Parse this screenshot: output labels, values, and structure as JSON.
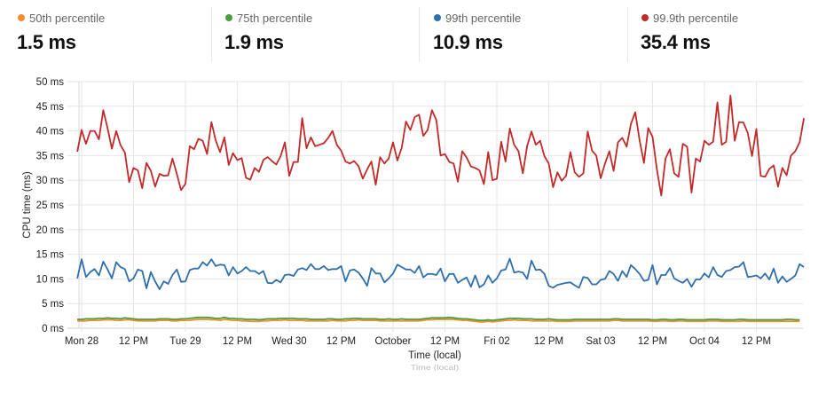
{
  "summary": [
    {
      "label": "50th percentile",
      "value": "1.5 ms",
      "color": "#f28e2b"
    },
    {
      "label": "75th percentile",
      "value": "1.9 ms",
      "color": "#4a9e3f"
    },
    {
      "label": "99th percentile",
      "value": "10.9 ms",
      "color": "#2f6fae"
    },
    {
      "label": "99.9th percentile",
      "value": "35.4 ms",
      "color": "#c22a2a"
    }
  ],
  "chart_data": {
    "type": "line",
    "xlabel": "Time (local)",
    "xlabel_reflection": "Time (local)",
    "ylabel": "CPU time (ms)",
    "ylim": [
      0,
      50
    ],
    "y_ticks": [
      "0 ms",
      "5 ms",
      "10 ms",
      "15 ms",
      "20 ms",
      "25 ms",
      "30 ms",
      "35 ms",
      "40 ms",
      "45 ms",
      "50 ms"
    ],
    "x_ticks": [
      "Mon 28",
      "12 PM",
      "Tue 29",
      "12 PM",
      "Wed 30",
      "12 PM",
      "October",
      "12 PM",
      "Fri 02",
      "12 PM",
      "Sat 03",
      "12 PM",
      "Oct 04",
      "12 PM"
    ],
    "x_tick_interval": "12 hours",
    "x_range": [
      "Sep 27 23:00",
      "Oct 04 22:00"
    ],
    "data_interval": "1 hour",
    "grid": true,
    "series": [
      {
        "name": "50th percentile",
        "color": "#f28e2b",
        "values": [
          1.5,
          1.5,
          1.5,
          1.6,
          1.6,
          1.6,
          1.7,
          1.7,
          1.7,
          1.6,
          1.6,
          1.7,
          1.7,
          1.6,
          1.5,
          1.5,
          1.5,
          1.5,
          1.5,
          1.6,
          1.6,
          1.6,
          1.5,
          1.5,
          1.6,
          1.6,
          1.6,
          1.7,
          1.8,
          1.8,
          1.8,
          1.7,
          1.7,
          1.6,
          1.8,
          1.7,
          1.6,
          1.6,
          1.5,
          1.5,
          1.4,
          1.4,
          1.4,
          1.5,
          1.5,
          1.6,
          1.6,
          1.6,
          1.7,
          1.6,
          1.6,
          1.6,
          1.6,
          1.5,
          1.5,
          1.5,
          1.5,
          1.5,
          1.5,
          1.6,
          1.5,
          1.5,
          1.5,
          1.6,
          1.6,
          1.7,
          1.6,
          1.6,
          1.6,
          1.6,
          1.5,
          1.5,
          1.5,
          1.5,
          1.5,
          1.5,
          1.5,
          1.5,
          1.5,
          1.5,
          1.6,
          1.7,
          1.7,
          1.8,
          1.8,
          1.8,
          1.8,
          1.8,
          1.7,
          1.6,
          1.6,
          1.5,
          1.4,
          1.3,
          1.3,
          1.4,
          1.3,
          1.4,
          1.5,
          1.6,
          1.6,
          1.7,
          1.6,
          1.6,
          1.6,
          1.5,
          1.5,
          1.5,
          1.5,
          1.5,
          1.5,
          1.4,
          1.4,
          1.4,
          1.4,
          1.5,
          1.5,
          1.5,
          1.5,
          1.5,
          1.5,
          1.5,
          1.5,
          1.5,
          1.6,
          1.6,
          1.5,
          1.5,
          1.5,
          1.5,
          1.5,
          1.5,
          1.5,
          1.4,
          1.4,
          1.5,
          1.5,
          1.4,
          1.4,
          1.5,
          1.5,
          1.4,
          1.4,
          1.4,
          1.4,
          1.4,
          1.5,
          1.5,
          1.5,
          1.4,
          1.4,
          1.4,
          1.4,
          1.4,
          1.5,
          1.4,
          1.4,
          1.4,
          1.4,
          1.4,
          1.4,
          1.4,
          1.4,
          1.4,
          1.4,
          1.4,
          1.4,
          1.4
        ]
      },
      {
        "name": "75th percentile",
        "color": "#4a9e3f",
        "values": [
          1.8,
          1.8,
          1.9,
          1.9,
          1.9,
          2.0,
          2.0,
          2.1,
          2.0,
          2.0,
          1.9,
          2.1,
          2.0,
          1.9,
          1.8,
          1.8,
          1.8,
          1.8,
          1.8,
          1.9,
          1.9,
          1.9,
          1.8,
          1.8,
          1.9,
          1.9,
          2.0,
          2.1,
          2.2,
          2.2,
          2.2,
          2.1,
          2.0,
          2.0,
          2.2,
          2.0,
          2.0,
          1.9,
          1.9,
          1.8,
          1.8,
          1.8,
          1.7,
          1.8,
          1.9,
          1.9,
          1.9,
          2.0,
          2.0,
          2.0,
          2.0,
          1.9,
          1.9,
          1.9,
          1.8,
          1.8,
          1.8,
          1.8,
          1.9,
          1.9,
          1.8,
          1.8,
          1.9,
          1.9,
          2.0,
          2.0,
          1.9,
          1.9,
          1.9,
          1.9,
          1.8,
          1.8,
          1.9,
          1.8,
          1.8,
          1.9,
          1.8,
          1.8,
          1.8,
          1.8,
          1.9,
          2.0,
          2.1,
          2.1,
          2.1,
          2.1,
          2.2,
          2.1,
          2.0,
          1.9,
          1.9,
          1.8,
          1.7,
          1.6,
          1.6,
          1.7,
          1.6,
          1.7,
          1.8,
          1.9,
          2.0,
          2.0,
          2.0,
          1.9,
          1.9,
          1.9,
          1.8,
          1.8,
          1.8,
          1.9,
          1.8,
          1.7,
          1.7,
          1.7,
          1.7,
          1.8,
          1.8,
          1.8,
          1.8,
          1.8,
          1.8,
          1.8,
          1.8,
          1.8,
          1.9,
          1.9,
          1.8,
          1.8,
          1.8,
          1.8,
          1.8,
          1.8,
          1.8,
          1.7,
          1.7,
          1.8,
          1.8,
          1.7,
          1.7,
          1.8,
          1.8,
          1.7,
          1.7,
          1.7,
          1.7,
          1.7,
          1.8,
          1.8,
          1.8,
          1.7,
          1.7,
          1.7,
          1.7,
          1.8,
          1.8,
          1.7,
          1.7,
          1.7,
          1.7,
          1.7,
          1.7,
          1.7,
          1.7,
          1.7,
          1.8,
          1.8,
          1.7,
          1.7
        ]
      },
      {
        "name": "99th percentile",
        "color": "#2f6fae",
        "values": [
          10.1,
          14,
          10.4,
          11.4,
          12,
          10.7,
          13.5,
          11.9,
          10.1,
          13.4,
          12.4,
          12,
          9.5,
          10.1,
          11.9,
          11.6,
          8.1,
          11.4,
          9.5,
          7.9,
          9.5,
          9,
          10.8,
          11.9,
          9.4,
          9.5,
          11.8,
          12.1,
          12.1,
          13.4,
          12.7,
          14,
          12.6,
          12.9,
          12.8,
          10.7,
          12.4,
          11.1,
          11.6,
          12.4,
          11.6,
          11.6,
          11,
          11.6,
          9.2,
          9.1,
          9.8,
          9.3,
          10.8,
          10.9,
          10.6,
          11.9,
          12.2,
          11.8,
          13,
          12,
          12,
          12.6,
          11.8,
          12,
          12,
          12.6,
          9.5,
          11.7,
          11.9,
          11.3,
          10.1,
          8.6,
          12.2,
          11.1,
          11.1,
          9.3,
          10.1,
          11.1,
          12.9,
          12.4,
          11.9,
          11.9,
          11.2,
          12.6,
          10.3,
          11,
          11,
          10.8,
          12.1,
          9.5,
          11,
          11,
          9.2,
          9.8,
          10.3,
          8.4,
          10.7,
          8.3,
          8.9,
          10.7,
          9.2,
          10.1,
          11.7,
          11.9,
          14.1,
          11.3,
          11.5,
          11.3,
          10,
          13.7,
          11.8,
          11.9,
          11,
          8.6,
          8.2,
          8.8,
          9,
          9.2,
          9.3,
          8.7,
          8.2,
          10.4,
          10.2,
          8.9,
          8.9,
          9.8,
          10,
          11.6,
          11,
          9.6,
          11.6,
          10.4,
          12.8,
          12,
          11,
          9.6,
          9.8,
          12.8,
          8.9,
          10.8,
          10.8,
          12.2,
          10.1,
          9.6,
          9.2,
          10,
          8.4,
          9.9,
          9.9,
          11.1,
          10.3,
          12.4,
          10.8,
          10.4,
          11.6,
          11.8,
          12.4,
          12.5,
          13.4,
          10.4,
          10.5,
          10.7,
          10.1,
          11.1,
          9.9,
          12.1,
          9.2,
          10.5,
          9.4,
          10,
          10.7,
          13,
          12.4
        ]
      },
      {
        "name": "99.9th percentile",
        "color": "#c22a2a",
        "values": [
          35.8,
          40.2,
          37.4,
          40,
          40,
          38.3,
          44.2,
          40.5,
          36.4,
          40,
          37.1,
          35.6,
          29.6,
          32.5,
          32,
          28.4,
          33.5,
          31.9,
          28.7,
          31.3,
          30.9,
          31,
          34.4,
          31.3,
          28,
          29.3,
          36.9,
          36.3,
          38.4,
          38,
          35.3,
          41.8,
          38.1,
          35.7,
          38.7,
          33.1,
          35.5,
          34.1,
          34.5,
          30.5,
          30.1,
          32.5,
          31.7,
          34.1,
          34.7,
          33.9,
          33.2,
          34.9,
          37.7,
          30.9,
          33.7,
          33.7,
          42.6,
          36.5,
          38.7,
          36.9,
          37.2,
          37.5,
          38.6,
          40,
          37.2,
          36,
          33.8,
          33.4,
          33.9,
          32.9,
          30.3,
          32.2,
          33.8,
          29.1,
          34.7,
          33.4,
          34.4,
          37.7,
          34,
          36.6,
          41.9,
          40.2,
          42.8,
          43.3,
          39,
          40.2,
          44.2,
          42.2,
          35,
          35.3,
          33.7,
          33.4,
          29.7,
          35.9,
          34.6,
          32.8,
          32.5,
          32,
          29.2,
          35.7,
          30,
          30.3,
          37.8,
          33.8,
          40.5,
          37.2,
          35.9,
          31.4,
          36.9,
          39.9,
          37.2,
          38,
          34.9,
          33.4,
          28.6,
          31.6,
          29.9,
          30.9,
          35.7,
          31.6,
          30.7,
          31.4,
          39.9,
          36,
          35,
          30.4,
          33.4,
          35.9,
          31.9,
          37.7,
          38.6,
          36.8,
          41.4,
          43.8,
          38.1,
          33.5,
          40.6,
          38.8,
          32.2,
          26.9,
          34.4,
          36.3,
          31.4,
          30.7,
          37.4,
          36.8,
          27.5,
          34.4,
          33.8,
          38,
          37.2,
          37.8,
          45.8,
          37.2,
          37.8,
          47.2,
          38,
          41.8,
          41.7,
          39.6,
          34.9,
          40.4,
          30.9,
          30.7,
          32.3,
          33,
          28.7,
          32.5,
          31,
          35,
          35.9,
          37.7,
          42.6
        ]
      }
    ]
  }
}
